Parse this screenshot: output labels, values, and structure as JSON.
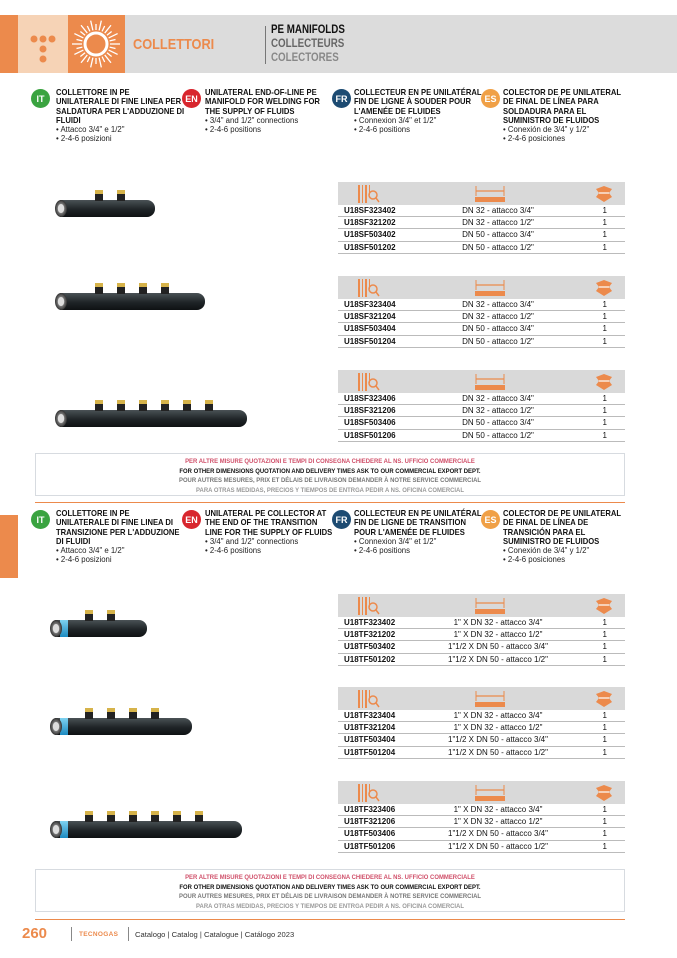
{
  "header": {
    "category": "COLLETTORI",
    "title_en": "PE MANIFOLDS",
    "title_fr": "COLLECTEURS",
    "title_es": "COLECTORES",
    "colors": {
      "accent": "#ec8a4c",
      "band": "#dcdcdc"
    }
  },
  "badges": {
    "it": {
      "label": "IT",
      "color": "#3aa340"
    },
    "en": {
      "label": "EN",
      "color": "#d8262e"
    },
    "fr": {
      "label": "FR",
      "color": "#1d4b72"
    },
    "es": {
      "label": "ES",
      "color": "#f0a046"
    }
  },
  "section1": {
    "it": {
      "title": "COLLETTORE IN PE UNILATERALE DI FINE LINEA PER SALDATURA PER L'ADDUZIONE DI FLUIDI",
      "bullets": [
        "• Attacco 3/4\" e 1/2\"",
        "• 2-4-6 posizioni"
      ]
    },
    "en": {
      "title": "UNILATERAL END-OF-LINE PE MANIFOLD FOR WELDING FOR THE SUPPLY OF FLUIDS",
      "bullets": [
        "• 3/4\" and 1/2\" connections",
        "• 2-4-6 positions"
      ]
    },
    "fr": {
      "title": "COLLECTEUR EN PE UNILATÉRAL FIN DE LIGNE À SOUDER POUR L'AMENÉE DE FLUIDES",
      "bullets": [
        "• Connexion 3/4\" et 1/2\"",
        "• 2-4-6 positions"
      ]
    },
    "es": {
      "title": "COLECTOR DE PE UNILATERAL DE FINAL DE LÍNEA PARA SOLDADURA PARA EL SUMINISTRO DE FLUIDOS",
      "bullets": [
        "• Conexión de 3/4\" y 1/2\"",
        "• 2-4-6 posiciones"
      ]
    }
  },
  "section2": {
    "it": {
      "title": "COLLETTORE IN PE UNILATERALE DI FINE LINEA DI TRANSIZIONE PER L'ADDUZIONE DI FLUIDI",
      "bullets": [
        "• Attacco 3/4\" e 1/2\"",
        "• 2-4-6 posizioni"
      ]
    },
    "en": {
      "title": "UNILATERAL PE COLLECTOR AT THE END OF THE TRANSITION LINE FOR THE SUPPLY OF FLUIDS",
      "bullets": [
        "• 3/4\" and 1/2\" connections",
        "• 2-4-6 positions"
      ]
    },
    "fr": {
      "title": "COLLECTEUR EN PE UNILATÉRAL FIN DE LIGNE DE TRANSITION POUR L'AMENÉE DE FLUIDES",
      "bullets": [
        "• Connexion 3/4\" et 1/2\"",
        "• 2-4-6 positions"
      ]
    },
    "es": {
      "title": "COLECTOR DE PE UNILATERAL DE FINAL DE LÍNEA DE TRANSICIÓN PARA EL SUMINISTRO DE FLUIDOS",
      "bullets": [
        "• Conexión de 3/4\" y 1/2\"",
        "• 2-4-6 posiciones"
      ]
    }
  },
  "table_header_icons": [
    "barcode-search-icon",
    "ruler-measure-icon",
    "box-package-icon"
  ],
  "tables": [
    [
      [
        "U18SF323402",
        "DN 32 - attacco 3/4\"",
        "1"
      ],
      [
        "U18SF321202",
        "DN 32 - attacco 1/2\"",
        "1"
      ],
      [
        "U18SF503402",
        "DN 50 - attacco 3/4\"",
        "1"
      ],
      [
        "U18SF501202",
        "DN 50 - attacco 1/2\"",
        "1"
      ]
    ],
    [
      [
        "U18SF323404",
        "DN 32 - attacco 3/4\"",
        "1"
      ],
      [
        "U18SF321204",
        "DN 32 - attacco 1/2\"",
        "1"
      ],
      [
        "U18SF503404",
        "DN 50 - attacco 3/4\"",
        "1"
      ],
      [
        "U18SF501204",
        "DN 50 - attacco 1/2\"",
        "1"
      ]
    ],
    [
      [
        "U18SF323406",
        "DN 32 - attacco 3/4\"",
        "1"
      ],
      [
        "U18SF321206",
        "DN 32 - attacco 1/2\"",
        "1"
      ],
      [
        "U18SF503406",
        "DN 50 - attacco 3/4\"",
        "1"
      ],
      [
        "U18SF501206",
        "DN 50 - attacco 1/2\"",
        "1"
      ]
    ],
    [
      [
        "U18TF323402",
        "1\" X DN 32 - attacco 3/4\"",
        "1"
      ],
      [
        "U18TF321202",
        "1\" X DN 32 - attacco 1/2\"",
        "1"
      ],
      [
        "U18TF503402",
        "1\"1/2 X DN 50 - attacco 3/4\"",
        "1"
      ],
      [
        "U18TF501202",
        "1\"1/2 X DN 50 - attacco 1/2\"",
        "1"
      ]
    ],
    [
      [
        "U18TF323404",
        "1\" X DN 32 - attacco 3/4\"",
        "1"
      ],
      [
        "U18TF321204",
        "1\" X DN 32 - attacco 1/2\"",
        "1"
      ],
      [
        "U18TF503404",
        "1\"1/2 X DN 50 - attacco 3/4\"",
        "1"
      ],
      [
        "U18TF501204",
        "1\"1/2 X DN 50 - attacco 1/2\"",
        "1"
      ]
    ],
    [
      [
        "U18TF323406",
        "1\" X DN 32 - attacco 3/4\"",
        "1"
      ],
      [
        "U18TF321206",
        "1\" X DN 32 - attacco 1/2\"",
        "1"
      ],
      [
        "U18TF503406",
        "1\"1/2 X DN 50 - attacco 3/4\"",
        "1"
      ],
      [
        "U18TF501206",
        "1\"1/2 X DN 50 - attacco 1/2\"",
        "1"
      ]
    ]
  ],
  "notice": {
    "it": "PER ALTRE MISURE QUOTAZIONI E TEMPI DI CONSEGNA CHIEDERE AL NS. UFFICIO COMMERCIALE",
    "en": "FOR OTHER DIMENSIONS QUOTATION AND DELIVERY TIMES ASK TO OUR COMMERCIAL EXPORT DEPT.",
    "fr": "POUR AUTRES MESURES, PRIX ET DÉLAIS DE LIVRAISON DEMANDER À NOTRE SERVICE COMMERCIAL",
    "es": "PARA OTRAS MEDIDAS, PRECIOS Y TIEMPOS DE ENTRGA PEDIR A NS. OFICINA COMERCIAL",
    "colors": {
      "it": "#d0506a",
      "en": "#111111",
      "fr": "#777777",
      "es": "#999999"
    }
  },
  "footer": {
    "page": "260",
    "brand": "TECNOGAS",
    "catalog": "Catalogo | Catalog | Catalogue | Catálogo 2023"
  }
}
